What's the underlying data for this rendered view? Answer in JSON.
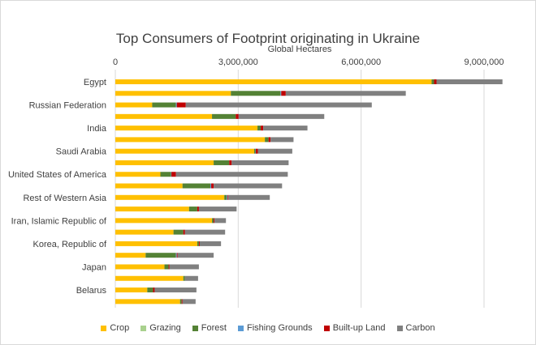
{
  "chart_data": {
    "type": "bar",
    "orientation": "horizontal",
    "stacked": true,
    "title": "Top Consumers of Footprint originating in Ukraine",
    "xlabel": "Global Hectares",
    "xlim": [
      0,
      9000000
    ],
    "xticks": [
      0,
      3000000,
      6000000,
      9000000
    ],
    "xtick_labels": [
      "0",
      "3,000,000",
      "6,000,000",
      "9,000,000"
    ],
    "x_axis_position": "top",
    "grid": true,
    "legend": "bottom",
    "categories": [
      "Egypt",
      "",
      "Russian Federation",
      "",
      "India",
      "",
      "Saudi Arabia",
      "",
      "United States of America",
      "",
      "Rest of Western Asia",
      "",
      "Iran, Islamic Republic of",
      "",
      "Korea, Republic of",
      "",
      "Japan",
      "",
      "Belarus",
      ""
    ],
    "series": [
      {
        "name": "Crop",
        "color": "#ffc000",
        "values": [
          7720000,
          2820000,
          900000,
          2360000,
          3470000,
          3650000,
          3390000,
          2400000,
          1100000,
          1640000,
          2660000,
          1800000,
          2360000,
          1420000,
          2000000,
          740000,
          1200000,
          1660000,
          780000,
          1580000
        ]
      },
      {
        "name": "Grazing",
        "color": "#a9d18e",
        "values": [
          0,
          0,
          0,
          0,
          0,
          0,
          0,
          0,
          0,
          0,
          0,
          0,
          0,
          0,
          0,
          0,
          0,
          0,
          0,
          0
        ]
      },
      {
        "name": "Forest",
        "color": "#548235",
        "values": [
          60000,
          1210000,
          580000,
          580000,
          80000,
          90000,
          30000,
          380000,
          260000,
          680000,
          60000,
          200000,
          40000,
          240000,
          40000,
          740000,
          100000,
          40000,
          140000,
          40000
        ]
      },
      {
        "name": "Fishing Grounds",
        "color": "#5b9bd5",
        "values": [
          0,
          20000,
          20000,
          0,
          0,
          0,
          10000,
          0,
          10000,
          20000,
          20000,
          0,
          0,
          0,
          0,
          20000,
          0,
          0,
          0,
          0
        ]
      },
      {
        "name": "Built-up Land",
        "color": "#c00000",
        "values": [
          60000,
          110000,
          220000,
          70000,
          60000,
          50000,
          50000,
          60000,
          110000,
          60000,
          20000,
          40000,
          20000,
          40000,
          20000,
          20000,
          20000,
          0,
          40000,
          20000
        ]
      },
      {
        "name": "Carbon",
        "color": "#808080",
        "values": [
          1610000,
          2930000,
          4540000,
          2090000,
          1080000,
          560000,
          840000,
          1390000,
          2730000,
          1670000,
          1010000,
          920000,
          280000,
          980000,
          520000,
          880000,
          720000,
          320000,
          1020000,
          320000
        ]
      }
    ]
  }
}
